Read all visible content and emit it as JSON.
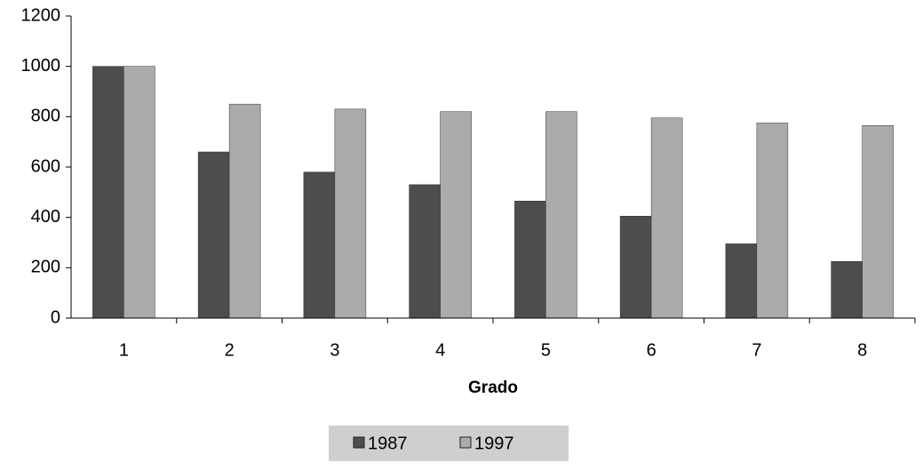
{
  "chart_data": {
    "type": "bar",
    "categories": [
      "1",
      "2",
      "3",
      "4",
      "5",
      "6",
      "7",
      "8"
    ],
    "series": [
      {
        "name": "1987",
        "color": "#4d4d4d",
        "values": [
          1000,
          660,
          580,
          530,
          465,
          405,
          295,
          225
        ]
      },
      {
        "name": "1997",
        "color": "#ababab",
        "values": [
          1000,
          850,
          830,
          820,
          820,
          795,
          775,
          765
        ]
      }
    ],
    "xlabel": "Grado",
    "ylim": [
      0,
      1200
    ],
    "yticks": [
      0,
      200,
      400,
      600,
      800,
      1000,
      1200
    ],
    "legend": "bottom"
  }
}
